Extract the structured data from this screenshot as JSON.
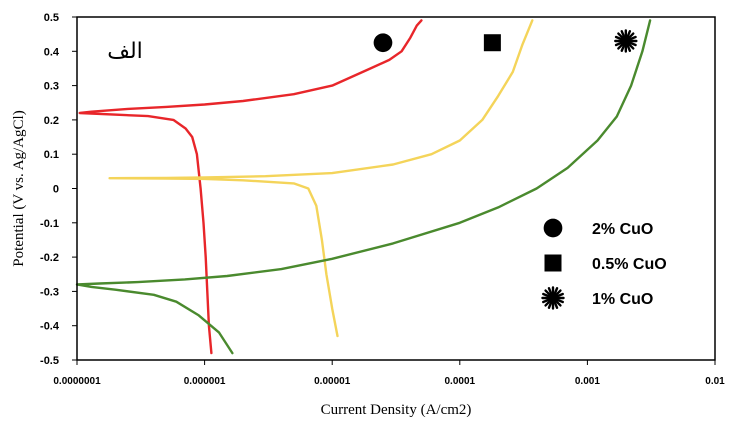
{
  "chart_data": {
    "type": "line",
    "panel_label": "الف",
    "xlabel": "Current Density (A/cm2)",
    "ylabel": "Potential (V vs. Ag/AgCl)",
    "xscale": "log",
    "xlim": [
      1e-07,
      0.01
    ],
    "ylim": [
      -0.5,
      0.5
    ],
    "grid": false,
    "legend_position": "right",
    "xticks": [
      {
        "value": 1e-07,
        "label": "0.0000001"
      },
      {
        "value": 1e-06,
        "label": "0.000001"
      },
      {
        "value": 1e-05,
        "label": "0.00001"
      },
      {
        "value": 0.0001,
        "label": "0.0001"
      },
      {
        "value": 0.001,
        "label": "0.001"
      },
      {
        "value": 0.01,
        "label": "0.01"
      }
    ],
    "yticks": [
      {
        "value": 0.5,
        "label": "0.5"
      },
      {
        "value": 0.4,
        "label": "0.4"
      },
      {
        "value": 0.3,
        "label": "0.3"
      },
      {
        "value": 0.2,
        "label": "0.2"
      },
      {
        "value": 0.1,
        "label": "0.1"
      },
      {
        "value": 0,
        "label": "0"
      },
      {
        "value": -0.1,
        "label": "-0.1"
      },
      {
        "value": -0.2,
        "label": "-0.2"
      },
      {
        "value": -0.3,
        "label": "-0.3"
      },
      {
        "value": -0.4,
        "label": "-0.4"
      },
      {
        "value": -0.5,
        "label": "-0.5"
      }
    ],
    "series": [
      {
        "name": "2% CuO",
        "color": "#e8262a",
        "marker": "circle",
        "marker_at": [
          2.5e-05,
          0.425
        ],
        "points": [
          [
            1.13e-06,
            -0.48
          ],
          [
            1.08e-06,
            -0.4
          ],
          [
            1.05e-06,
            -0.3
          ],
          [
            1.02e-06,
            -0.2
          ],
          [
            9.8e-07,
            -0.1
          ],
          [
            9.3e-07,
            0.0
          ],
          [
            8.7e-07,
            0.1
          ],
          [
            8e-07,
            0.15
          ],
          [
            7.1e-07,
            0.175
          ],
          [
            5.7e-07,
            0.2
          ],
          [
            3.6e-07,
            0.211
          ],
          [
            1.05e-07,
            0.22
          ],
          [
            1.3e-07,
            0.224
          ],
          [
            2.5e-07,
            0.232
          ],
          [
            5e-07,
            0.238
          ],
          [
            1e-06,
            0.245
          ],
          [
            2e-06,
            0.255
          ],
          [
            5e-06,
            0.275
          ],
          [
            1e-05,
            0.3
          ],
          [
            2e-05,
            0.35
          ],
          [
            2.8e-05,
            0.375
          ],
          [
            3.5e-05,
            0.4
          ],
          [
            4.1e-05,
            0.44
          ],
          [
            4.6e-05,
            0.475
          ],
          [
            5e-05,
            0.49
          ]
        ]
      },
      {
        "name": "0.5% CuO",
        "color": "#f4d45a",
        "marker": "square",
        "marker_at": [
          0.00018,
          0.425
        ],
        "points": [
          [
            1.1e-05,
            -0.43
          ],
          [
            1e-05,
            -0.35
          ],
          [
            9e-06,
            -0.25
          ],
          [
            8.3e-06,
            -0.15
          ],
          [
            7.5e-06,
            -0.05
          ],
          [
            6.5e-06,
            0.0
          ],
          [
            5e-06,
            0.015
          ],
          [
            2e-06,
            0.024
          ],
          [
            1e-06,
            0.028
          ],
          [
            5e-07,
            0.029
          ],
          [
            1.8e-07,
            0.03
          ],
          [
            5e-07,
            0.031
          ],
          [
            1e-06,
            0.032
          ],
          [
            3e-06,
            0.036
          ],
          [
            1e-05,
            0.045
          ],
          [
            3e-05,
            0.07
          ],
          [
            6e-05,
            0.1
          ],
          [
            0.0001,
            0.14
          ],
          [
            0.00015,
            0.2
          ],
          [
            0.0002,
            0.27
          ],
          [
            0.00026,
            0.34
          ],
          [
            0.00031,
            0.42
          ],
          [
            0.00037,
            0.49
          ]
        ]
      },
      {
        "name": "1% CuO",
        "color": "#4a8a2e",
        "marker": "star",
        "marker_at": [
          0.002,
          0.43
        ],
        "points": [
          [
            1.65e-06,
            -0.48
          ],
          [
            1.3e-06,
            -0.42
          ],
          [
            9e-07,
            -0.37
          ],
          [
            6e-07,
            -0.33
          ],
          [
            4e-07,
            -0.31
          ],
          [
            2e-07,
            -0.295
          ],
          [
            1.3e-07,
            -0.287
          ],
          [
            1e-07,
            -0.28
          ],
          [
            1.5e-07,
            -0.277
          ],
          [
            3e-07,
            -0.273
          ],
          [
            7e-07,
            -0.265
          ],
          [
            1.5e-06,
            -0.255
          ],
          [
            4e-06,
            -0.235
          ],
          [
            1e-05,
            -0.205
          ],
          [
            3e-05,
            -0.16
          ],
          [
            0.0001,
            -0.1
          ],
          [
            0.0002,
            -0.055
          ],
          [
            0.0004,
            0.0
          ],
          [
            0.0007,
            0.06
          ],
          [
            0.0012,
            0.14
          ],
          [
            0.0017,
            0.21
          ],
          [
            0.0022,
            0.3
          ],
          [
            0.0027,
            0.4
          ],
          [
            0.0031,
            0.49
          ]
        ]
      }
    ]
  }
}
